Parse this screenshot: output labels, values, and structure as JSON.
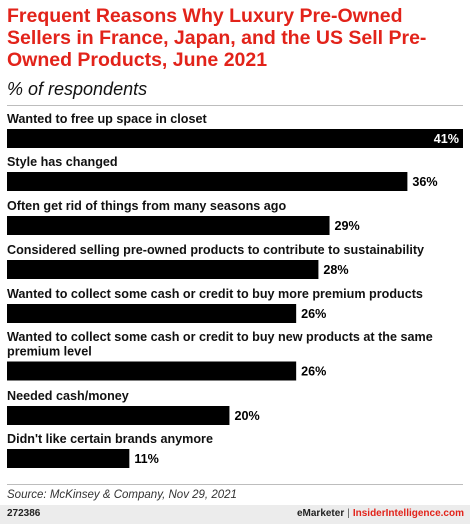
{
  "title": "Frequent Reasons Why Luxury Pre-Owned Sellers in France, Japan, and the US Sell Pre-Owned Products, June 2021",
  "subtitle": "% of respondents",
  "colors": {
    "title": "#e2231a",
    "bar": "#000000",
    "inside_label": "#ffffff",
    "outside_label": "#000000"
  },
  "chart_data": {
    "type": "bar",
    "orientation": "horizontal",
    "unit": "%",
    "categories": [
      "Wanted to free up space in closet",
      "Style has changed",
      "Often get rid of things from many seasons ago",
      "Considered selling pre-owned products to contribute to sustainability",
      "Wanted to collect some cash or credit to buy more premium products",
      "Wanted to collect some cash or credit to buy new products at the same premium level",
      "Needed cash/money",
      "Didn't like certain brands anymore"
    ],
    "values": [
      41,
      36,
      29,
      28,
      26,
      26,
      20,
      11
    ],
    "value_labels": [
      "41%",
      "36%",
      "29%",
      "28%",
      "26%",
      "26%",
      "20%",
      "11%"
    ],
    "xlim": [
      0,
      41
    ],
    "grid": false,
    "legend": "none"
  },
  "source": "Source: McKinsey & Company, Nov 29, 2021",
  "footer": {
    "chart_id": "272386",
    "brand_one": "eMarketer",
    "separator": "|",
    "brand_two": "InsiderIntelligence.com"
  }
}
